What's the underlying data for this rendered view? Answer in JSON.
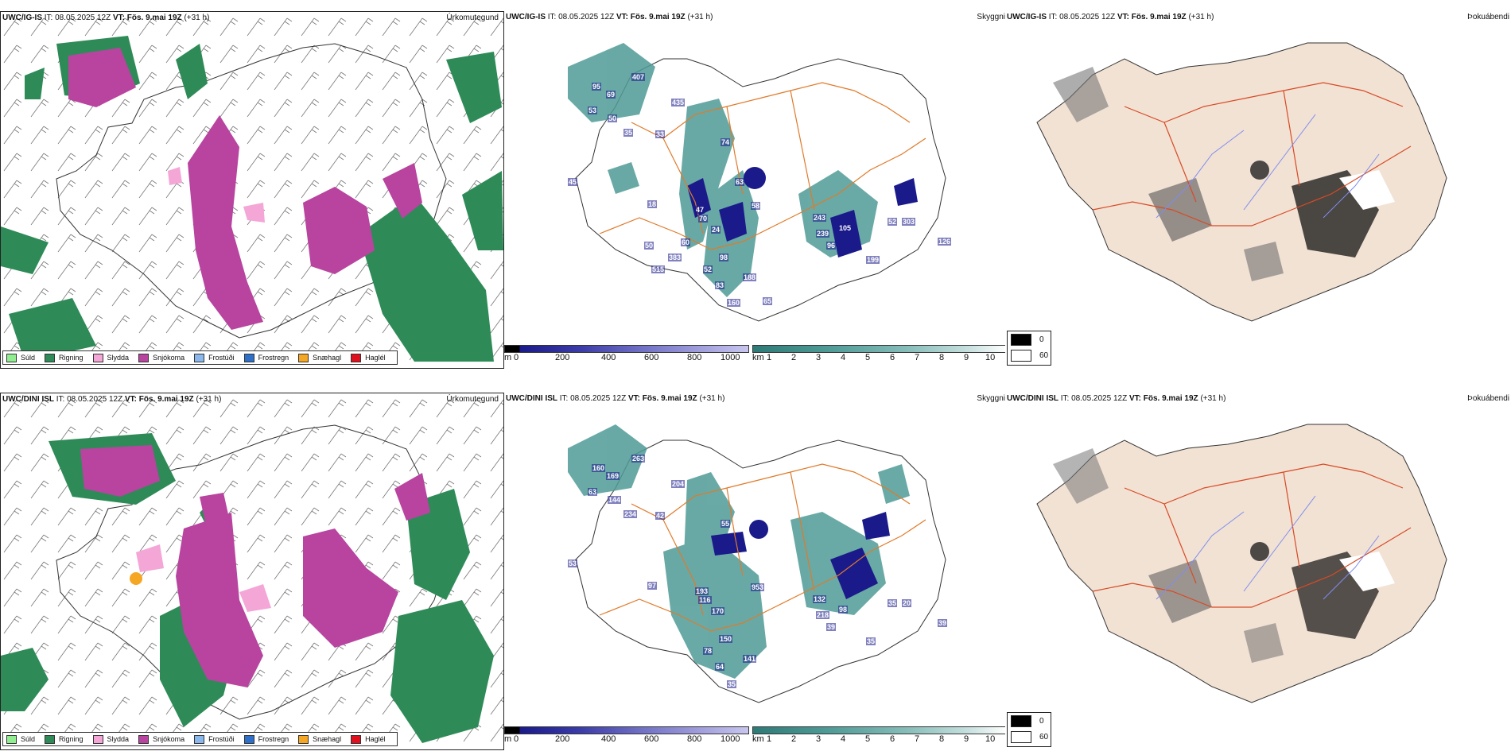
{
  "rows": [
    {
      "model": "UWC/IG-IS",
      "it_label": "IT:",
      "it_value": "08.05.2025 12Z",
      "vt_label": "VT:",
      "vt_value": "Fös. 9.mai 19Z",
      "lead": "(+31 h)",
      "panels": {
        "precip": "Úrkomutegund",
        "ceiling": "Skyggni",
        "fog": "Þokuábendi"
      },
      "ceiling_labels": [
        "407",
        "435",
        "95",
        "69",
        "53",
        "50",
        "35",
        "33",
        "58",
        "45",
        "18",
        "70",
        "47",
        "24",
        "52",
        "98",
        "188",
        "83",
        "160",
        "243",
        "239",
        "105",
        "96",
        "199",
        "52",
        "303",
        "126",
        "74",
        "63",
        "50",
        "60",
        "383",
        "515",
        "65"
      ]
    },
    {
      "model": "UWC/DINI ISL",
      "it_label": "IT:",
      "it_value": "08.05.2025 12Z",
      "vt_label": "VT:",
      "vt_value": "Fös. 9.mai 19Z",
      "lead": "(+31 h)",
      "panels": {
        "precip": "Úrkomutegund",
        "ceiling": "Skyggni",
        "fog": "Þokuábendi"
      },
      "ceiling_labels": [
        "263",
        "204",
        "160",
        "169",
        "63",
        "144",
        "234",
        "42",
        "953",
        "53",
        "97",
        "116",
        "193",
        "170",
        "78",
        "150",
        "141",
        "64",
        "35",
        "132",
        "218",
        "98",
        "39",
        "35",
        "35",
        "20",
        "39",
        "55"
      ]
    }
  ],
  "precip_legend": [
    {
      "label": "Súld",
      "color": "#90ee90"
    },
    {
      "label": "Rigning",
      "color": "#2e8b57"
    },
    {
      "label": "Slydda",
      "color": "#f4a6d7"
    },
    {
      "label": "Snjókoma",
      "color": "#b8449f"
    },
    {
      "label": "Frostúði",
      "color": "#8ab8ec"
    },
    {
      "label": "Frostregn",
      "color": "#2e6fc9"
    },
    {
      "label": "Snæhagl",
      "color": "#f5a623"
    },
    {
      "label": "Haglél",
      "color": "#e0101e"
    }
  ],
  "ceiling_scale": {
    "unit": "m",
    "ticks": [
      "0",
      "200",
      "400",
      "600",
      "800",
      "1000"
    ]
  },
  "visibility_scale": {
    "unit": "km",
    "ticks": [
      "1",
      "2",
      "3",
      "4",
      "5",
      "6",
      "7",
      "8",
      "9",
      "10"
    ]
  },
  "fog_scale": {
    "values": [
      "0",
      "60"
    ]
  },
  "colors": {
    "rain": "#2e8b57",
    "snow": "#b8449f",
    "sleet": "#f4a6d7",
    "ceiling_dark": "#1a1a8a",
    "ceiling_light": "#c8c6ee",
    "visibility": "#4f9b96",
    "roads": "#e07a2a",
    "fog_land": "#f2e2d4",
    "fog_roads": "#d84a25",
    "rivers": "#7f8cf0"
  }
}
